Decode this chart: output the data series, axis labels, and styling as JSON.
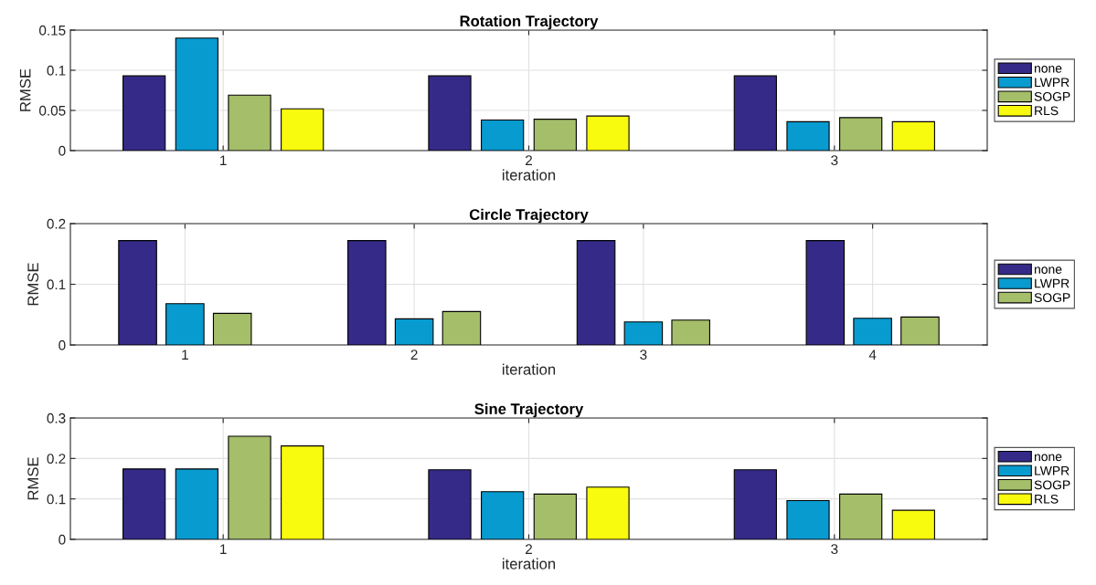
{
  "chart_data": [
    {
      "type": "bar",
      "title": "Rotation Trajectory",
      "xlabel": "iteration",
      "ylabel": "RMSE",
      "categories": [
        "1",
        "2",
        "3"
      ],
      "ylim": [
        0,
        0.15
      ],
      "yticks": [
        0,
        0.05,
        0.1,
        0.15
      ],
      "grid": true,
      "legend": "right",
      "series": [
        {
          "name": "none",
          "color": "#352a87",
          "values": [
            0.093,
            0.093,
            0.093
          ]
        },
        {
          "name": "LWPR",
          "color": "#089bcf",
          "values": [
            0.14,
            0.038,
            0.036
          ]
        },
        {
          "name": "SOGP",
          "color": "#a5be6a",
          "values": [
            0.069,
            0.039,
            0.041
          ]
        },
        {
          "name": "RLS",
          "color": "#f9fb0e",
          "values": [
            0.052,
            0.043,
            0.036
          ]
        }
      ]
    },
    {
      "type": "bar",
      "title": "Circle Trajectory",
      "xlabel": "iteration",
      "ylabel": "RMSE",
      "categories": [
        "1",
        "2",
        "3",
        "4"
      ],
      "ylim": [
        0,
        0.2
      ],
      "yticks": [
        0,
        0.1,
        0.2
      ],
      "grid": true,
      "legend": "right",
      "series": [
        {
          "name": "none",
          "color": "#352a87",
          "values": [
            0.172,
            0.172,
            0.172,
            0.172
          ]
        },
        {
          "name": "LWPR",
          "color": "#089bcf",
          "values": [
            0.068,
            0.043,
            0.038,
            0.044
          ]
        },
        {
          "name": "SOGP",
          "color": "#a5be6a",
          "values": [
            0.052,
            0.055,
            0.041,
            0.046
          ]
        }
      ]
    },
    {
      "type": "bar",
      "title": "Sine Trajectory",
      "xlabel": "iteration",
      "ylabel": "RMSE",
      "categories": [
        "1",
        "2",
        "3"
      ],
      "ylim": [
        0,
        0.3
      ],
      "yticks": [
        0,
        0.1,
        0.2,
        0.3
      ],
      "grid": true,
      "legend": "right",
      "series": [
        {
          "name": "none",
          "color": "#352a87",
          "values": [
            0.174,
            0.172,
            0.172
          ]
        },
        {
          "name": "LWPR",
          "color": "#089bcf",
          "values": [
            0.174,
            0.118,
            0.096
          ]
        },
        {
          "name": "SOGP",
          "color": "#a5be6a",
          "values": [
            0.255,
            0.112,
            0.112
          ]
        },
        {
          "name": "RLS",
          "color": "#f9fb0e",
          "values": [
            0.231,
            0.129,
            0.072
          ]
        }
      ]
    }
  ]
}
